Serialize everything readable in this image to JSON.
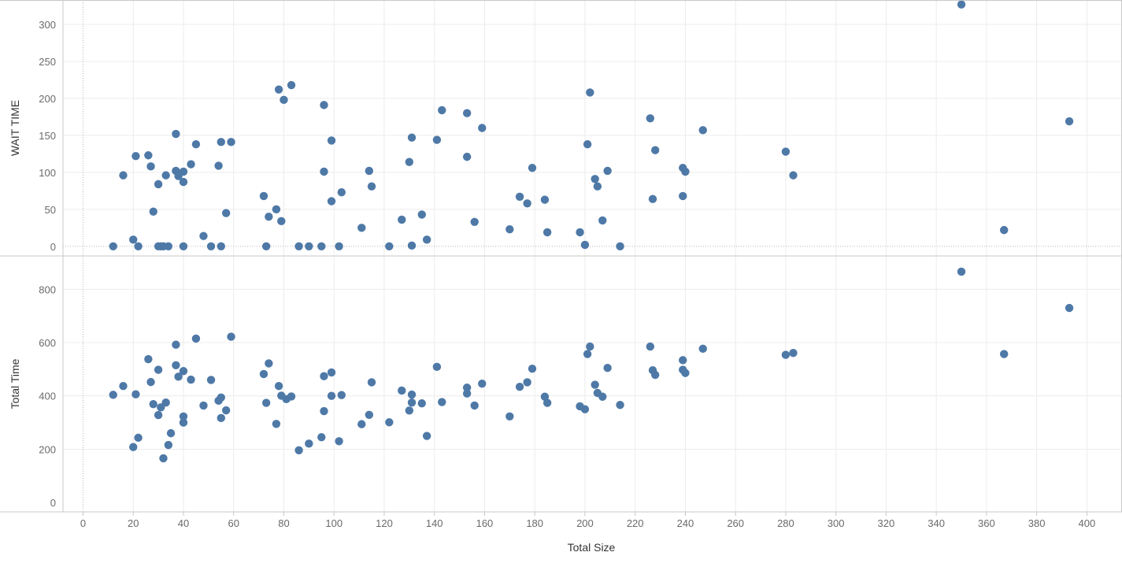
{
  "chart_data": {
    "type": "scatter",
    "grid": true,
    "marker_color": "#4e79a7",
    "x_axis": {
      "label": "Total Size",
      "range": [
        -8,
        414
      ],
      "ticks": [
        0,
        20,
        40,
        60,
        80,
        100,
        120,
        140,
        160,
        180,
        200,
        220,
        240,
        260,
        280,
        300,
        320,
        340,
        360,
        380,
        400
      ]
    },
    "panels": [
      {
        "name": "wait-time",
        "ylabel": "WAIT TIME",
        "ylim": [
          -13,
          333
        ],
        "yticks": [
          0,
          50,
          100,
          150,
          200,
          250,
          300
        ],
        "points": [
          [
            12,
            0
          ],
          [
            16,
            96
          ],
          [
            20,
            9
          ],
          [
            21,
            122
          ],
          [
            22,
            0
          ],
          [
            26,
            123
          ],
          [
            27,
            108
          ],
          [
            28,
            47
          ],
          [
            30,
            0
          ],
          [
            30,
            84
          ],
          [
            31,
            0
          ],
          [
            32,
            0
          ],
          [
            33,
            96
          ],
          [
            34,
            0
          ],
          [
            37,
            102
          ],
          [
            37,
            152
          ],
          [
            38,
            95
          ],
          [
            40,
            101
          ],
          [
            40,
            87
          ],
          [
            40,
            0
          ],
          [
            43,
            111
          ],
          [
            45,
            138
          ],
          [
            48,
            14
          ],
          [
            51,
            0
          ],
          [
            54,
            109
          ],
          [
            55,
            0
          ],
          [
            55,
            141
          ],
          [
            57,
            45
          ],
          [
            59,
            141
          ],
          [
            72,
            68
          ],
          [
            73,
            0
          ],
          [
            74,
            40
          ],
          [
            77,
            50
          ],
          [
            78,
            212
          ],
          [
            79,
            34
          ],
          [
            80,
            198
          ],
          [
            83,
            218
          ],
          [
            86,
            0
          ],
          [
            90,
            0
          ],
          [
            95,
            0
          ],
          [
            96,
            191
          ],
          [
            96,
            101
          ],
          [
            99,
            61
          ],
          [
            99,
            143
          ],
          [
            102,
            0
          ],
          [
            103,
            73
          ],
          [
            111,
            25
          ],
          [
            114,
            102
          ],
          [
            115,
            81
          ],
          [
            122,
            0
          ],
          [
            127,
            36
          ],
          [
            130,
            114
          ],
          [
            131,
            147
          ],
          [
            131,
            1
          ],
          [
            135,
            43
          ],
          [
            137,
            9
          ],
          [
            141,
            144
          ],
          [
            143,
            184
          ],
          [
            153,
            180
          ],
          [
            153,
            121
          ],
          [
            156,
            33
          ],
          [
            159,
            160
          ],
          [
            170,
            23
          ],
          [
            174,
            67
          ],
          [
            177,
            58
          ],
          [
            179,
            106
          ],
          [
            184,
            63
          ],
          [
            185,
            19
          ],
          [
            198,
            19
          ],
          [
            200,
            2
          ],
          [
            201,
            138
          ],
          [
            202,
            208
          ],
          [
            204,
            91
          ],
          [
            205,
            81
          ],
          [
            207,
            35
          ],
          [
            209,
            102
          ],
          [
            214,
            0
          ],
          [
            226,
            173
          ],
          [
            227,
            64
          ],
          [
            228,
            130
          ],
          [
            239,
            106
          ],
          [
            239,
            68
          ],
          [
            240,
            101
          ],
          [
            247,
            157
          ],
          [
            280,
            128
          ],
          [
            283,
            96
          ],
          [
            350,
            327
          ],
          [
            367,
            22
          ],
          [
            393,
            169
          ]
        ]
      },
      {
        "name": "total-time",
        "ylabel": "Total Time",
        "ylim": [
          -35,
          925
        ],
        "yticks": [
          0,
          200,
          400,
          600,
          800
        ],
        "points": [
          [
            12,
            404
          ],
          [
            16,
            437
          ],
          [
            20,
            208
          ],
          [
            21,
            406
          ],
          [
            22,
            243
          ],
          [
            26,
            538
          ],
          [
            27,
            452
          ],
          [
            28,
            369
          ],
          [
            30,
            328
          ],
          [
            30,
            498
          ],
          [
            31,
            357
          ],
          [
            32,
            166
          ],
          [
            33,
            375
          ],
          [
            34,
            216
          ],
          [
            35,
            260
          ],
          [
            37,
            515
          ],
          [
            37,
            592
          ],
          [
            38,
            472
          ],
          [
            40,
            493
          ],
          [
            40,
            300
          ],
          [
            40,
            323
          ],
          [
            43,
            461
          ],
          [
            45,
            615
          ],
          [
            48,
            364
          ],
          [
            51,
            460
          ],
          [
            54,
            382
          ],
          [
            55,
            317
          ],
          [
            55,
            394
          ],
          [
            57,
            346
          ],
          [
            59,
            622
          ],
          [
            72,
            482
          ],
          [
            73,
            374
          ],
          [
            74,
            522
          ],
          [
            77,
            295
          ],
          [
            78,
            437
          ],
          [
            79,
            401
          ],
          [
            81,
            388
          ],
          [
            83,
            398
          ],
          [
            86,
            196
          ],
          [
            90,
            221
          ],
          [
            95,
            245
          ],
          [
            96,
            474
          ],
          [
            96,
            343
          ],
          [
            99,
            400
          ],
          [
            99,
            488
          ],
          [
            102,
            230
          ],
          [
            103,
            403
          ],
          [
            111,
            294
          ],
          [
            114,
            329
          ],
          [
            115,
            451
          ],
          [
            122,
            301
          ],
          [
            127,
            420
          ],
          [
            130,
            345
          ],
          [
            131,
            375
          ],
          [
            131,
            405
          ],
          [
            135,
            372
          ],
          [
            137,
            250
          ],
          [
            141,
            509
          ],
          [
            143,
            377
          ],
          [
            153,
            431
          ],
          [
            153,
            409
          ],
          [
            156,
            364
          ],
          [
            159,
            446
          ],
          [
            170,
            323
          ],
          [
            174,
            434
          ],
          [
            177,
            451
          ],
          [
            179,
            502
          ],
          [
            184,
            397
          ],
          [
            185,
            374
          ],
          [
            198,
            361
          ],
          [
            200,
            350
          ],
          [
            201,
            557
          ],
          [
            202,
            585
          ],
          [
            204,
            442
          ],
          [
            205,
            411
          ],
          [
            207,
            397
          ],
          [
            209,
            505
          ],
          [
            214,
            366
          ],
          [
            226,
            585
          ],
          [
            227,
            496
          ],
          [
            228,
            479
          ],
          [
            239,
            534
          ],
          [
            239,
            498
          ],
          [
            240,
            486
          ],
          [
            247,
            577
          ],
          [
            280,
            554
          ],
          [
            283,
            561
          ],
          [
            350,
            866
          ],
          [
            367,
            557
          ],
          [
            393,
            730
          ]
        ]
      }
    ]
  }
}
